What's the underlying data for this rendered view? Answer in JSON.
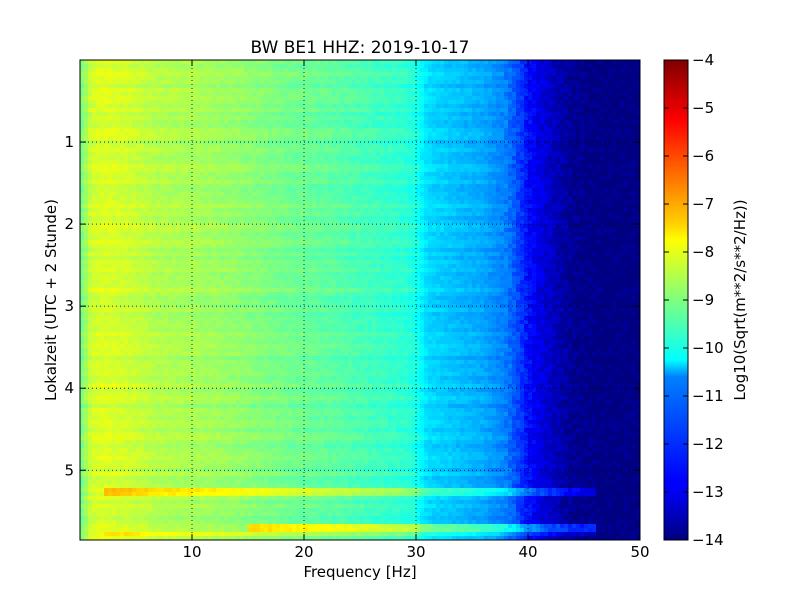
{
  "chart_data": {
    "type": "heatmap",
    "title": "BW BE1 HHZ: 2019-10-17",
    "xlabel": "Frequency [Hz]",
    "ylabel": "Lokalzeit (UTC + 2 Stunde)",
    "colorbar_label": "Log10(Sqrt(m**2/s**2/Hz))",
    "xlim": [
      0,
      50
    ],
    "ylim": [
      5.85,
      0
    ],
    "x_ticks": [
      10,
      20,
      30,
      40,
      50
    ],
    "y_ticks": [
      1,
      2,
      3,
      4,
      5
    ],
    "colorbar_range": [
      -14,
      -4
    ],
    "colorbar_ticks": [
      -4,
      -5,
      -6,
      -7,
      -8,
      -9,
      -10,
      -11,
      -12,
      -13,
      -14
    ],
    "colormap": "jet",
    "grid": true,
    "grid_style": "dotted",
    "spectrum_profile": {
      "frequency_hz": [
        0,
        1,
        2,
        4,
        7,
        10,
        14,
        18,
        22,
        26,
        29,
        30,
        31,
        33,
        36,
        38,
        39,
        40,
        41,
        42,
        43,
        44,
        45,
        47,
        50
      ],
      "log10_psd": [
        -9.2,
        -8.2,
        -8.1,
        -8.2,
        -8.5,
        -8.6,
        -8.8,
        -9.1,
        -9.3,
        -9.6,
        -9.8,
        -10.0,
        -10.6,
        -10.8,
        -11.1,
        -11.5,
        -12.0,
        -12.6,
        -13.0,
        -13.3,
        -13.6,
        -13.8,
        -13.9,
        -14.0,
        -14.0
      ]
    },
    "noise_bursts": [
      {
        "time_hours": 5.28,
        "freq_range_hz": [
          2,
          46
        ],
        "log10_psd_offset": 1.0
      },
      {
        "time_hours": 5.72,
        "freq_range_hz": [
          15,
          46
        ],
        "log10_psd_offset": 1.4
      },
      {
        "time_hours": 5.78,
        "freq_range_hz": [
          2,
          46
        ],
        "log10_psd_offset": 0.6
      }
    ]
  },
  "colors": {
    "axis": "#000000",
    "background": "#ffffff",
    "jet_dark_blue": "#00007f",
    "jet_blue": "#0000ff",
    "jet_cyan": "#00ffff",
    "jet_yellow": "#ffff00",
    "jet_red": "#ff0000",
    "jet_dark_red": "#7f0000"
  }
}
